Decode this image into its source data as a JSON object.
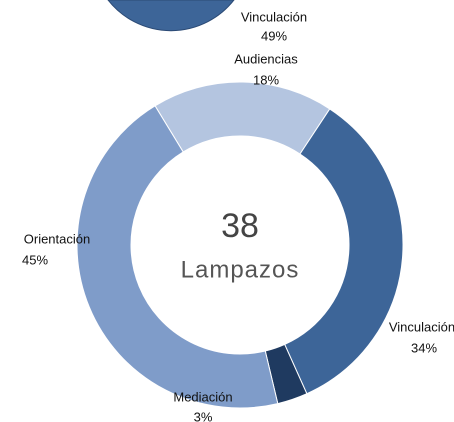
{
  "chart_data": {
    "type": "donut",
    "categories": [
      "Audiencias",
      "Vinculación",
      "Mediación",
      "Orientación"
    ],
    "values": [
      18,
      34,
      3,
      45
    ],
    "value_labels": [
      "18%",
      "34%",
      "3%",
      "45%"
    ],
    "colors": [
      "#b4c5e0",
      "#3d6598",
      "#1f3a60",
      "#7f9cc9"
    ],
    "center_value": 38,
    "center_label": "Lampazos"
  },
  "cropped_chart": {
    "type": "donut",
    "categories": [
      "Vinculación"
    ],
    "values": [
      49
    ],
    "value_labels": [
      "49%"
    ],
    "colors": [
      "#3d6598"
    ]
  }
}
